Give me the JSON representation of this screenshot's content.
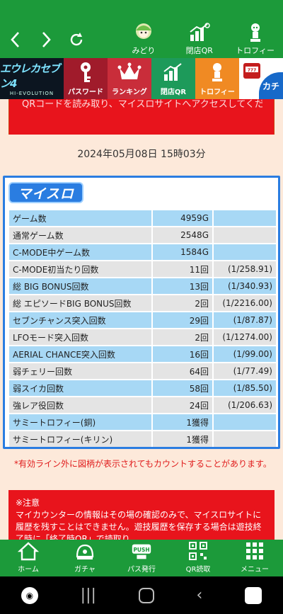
{
  "nav": {
    "back_icon": "chevron-left-icon",
    "forward_icon": "chevron-right-icon",
    "refresh_icon": "refresh-icon",
    "items": [
      {
        "label": "みどり",
        "icon": "character-icon"
      },
      {
        "label": "閉店QR",
        "icon": "qr-chart-icon"
      },
      {
        "label": "トロフィー",
        "icon": "trophy-figure-icon"
      }
    ]
  },
  "banner": {
    "logo_text": "エウレカセブン4",
    "logo_subtext": "HI-EVOLUTION",
    "items": [
      {
        "label": "パスワード",
        "icon": "key-icon"
      },
      {
        "label": "ランキング",
        "icon": "crown-icon"
      },
      {
        "label": "閉店QR",
        "icon": "qr-chart-icon"
      },
      {
        "label": "トロフィー",
        "icon": "trophy-figure-icon"
      }
    ],
    "corner_text": "カチ"
  },
  "notice_top": "QRコードを読み取り、マイスロサイトへアクセスしてください。",
  "date": "2024年05月08日 15時03分",
  "myslo_title": "マイスロ",
  "stats": [
    {
      "label": "ゲーム数",
      "value": "4959G",
      "rate": "",
      "style": "blue"
    },
    {
      "label": "通常ゲーム数",
      "value": "2548G",
      "rate": "",
      "style": "gray"
    },
    {
      "label": "C-MODE中ゲーム数",
      "value": "1584G",
      "rate": "",
      "style": "blue"
    },
    {
      "label": "C-MODE初当たり回数",
      "value": "11回",
      "rate": "(1/258.91)",
      "style": "gray"
    },
    {
      "label": "総 BIG BONUS回数",
      "value": "13回",
      "rate": "(1/340.93)",
      "style": "blue"
    },
    {
      "label": "総 エピソードBIG BONUS回数",
      "value": "2回",
      "rate": "(1/2216.00)",
      "style": "gray"
    },
    {
      "label": "セブンチャンス突入回数",
      "value": "29回",
      "rate": "(1/87.87)",
      "style": "blue"
    },
    {
      "label": "LFOモード突入回数",
      "value": "2回",
      "rate": "(1/1274.00)",
      "style": "gray"
    },
    {
      "label": "AERIAL CHANCE突入回数",
      "value": "16回",
      "rate": "(1/99.00)",
      "style": "blue"
    },
    {
      "label": "弱チェリー回数",
      "value": "64回",
      "rate": "(1/77.49)",
      "style": "gray"
    },
    {
      "label": "弱スイカ回数",
      "value": "58回",
      "rate": "(1/85.50)",
      "style": "blue"
    },
    {
      "label": "強レア役回数",
      "value": "24回",
      "rate": "(1/206.63)",
      "style": "gray"
    },
    {
      "label": "サミートロフィー(銅)",
      "value": "1獲得",
      "rate": "",
      "style": "blue"
    },
    {
      "label": "サミートロフィー(キリン)",
      "value": "1獲得",
      "rate": "",
      "style": "gray"
    }
  ],
  "note": "*有効ライン外に図柄が表示されてもカウントすることがあります。",
  "notice_bottom": {
    "heading": "※注意",
    "body": "マイカウンターの情報はその場の確認のみで、マイスロサイトに履歴を残すことはできません。遊技履歴を保存する場合は遊技終了時に「終了時QR」で読取り"
  },
  "bottom_nav": [
    {
      "label": "ホーム",
      "icon": "home-icon"
    },
    {
      "label": "ガチャ",
      "icon": "gacha-icon"
    },
    {
      "label": "パス発行",
      "icon": "push-pass-icon"
    },
    {
      "label": "QR読取",
      "icon": "qr-code-icon"
    },
    {
      "label": "メニュー",
      "icon": "menu-grid-icon"
    }
  ],
  "colors": {
    "green": "#1c9a3a",
    "red": "#e8141c",
    "blue_border": "#2a7de1",
    "row_blue": "#a7d8f5",
    "row_gray": "#e4e4e4",
    "page_bg": "#fde9da"
  }
}
